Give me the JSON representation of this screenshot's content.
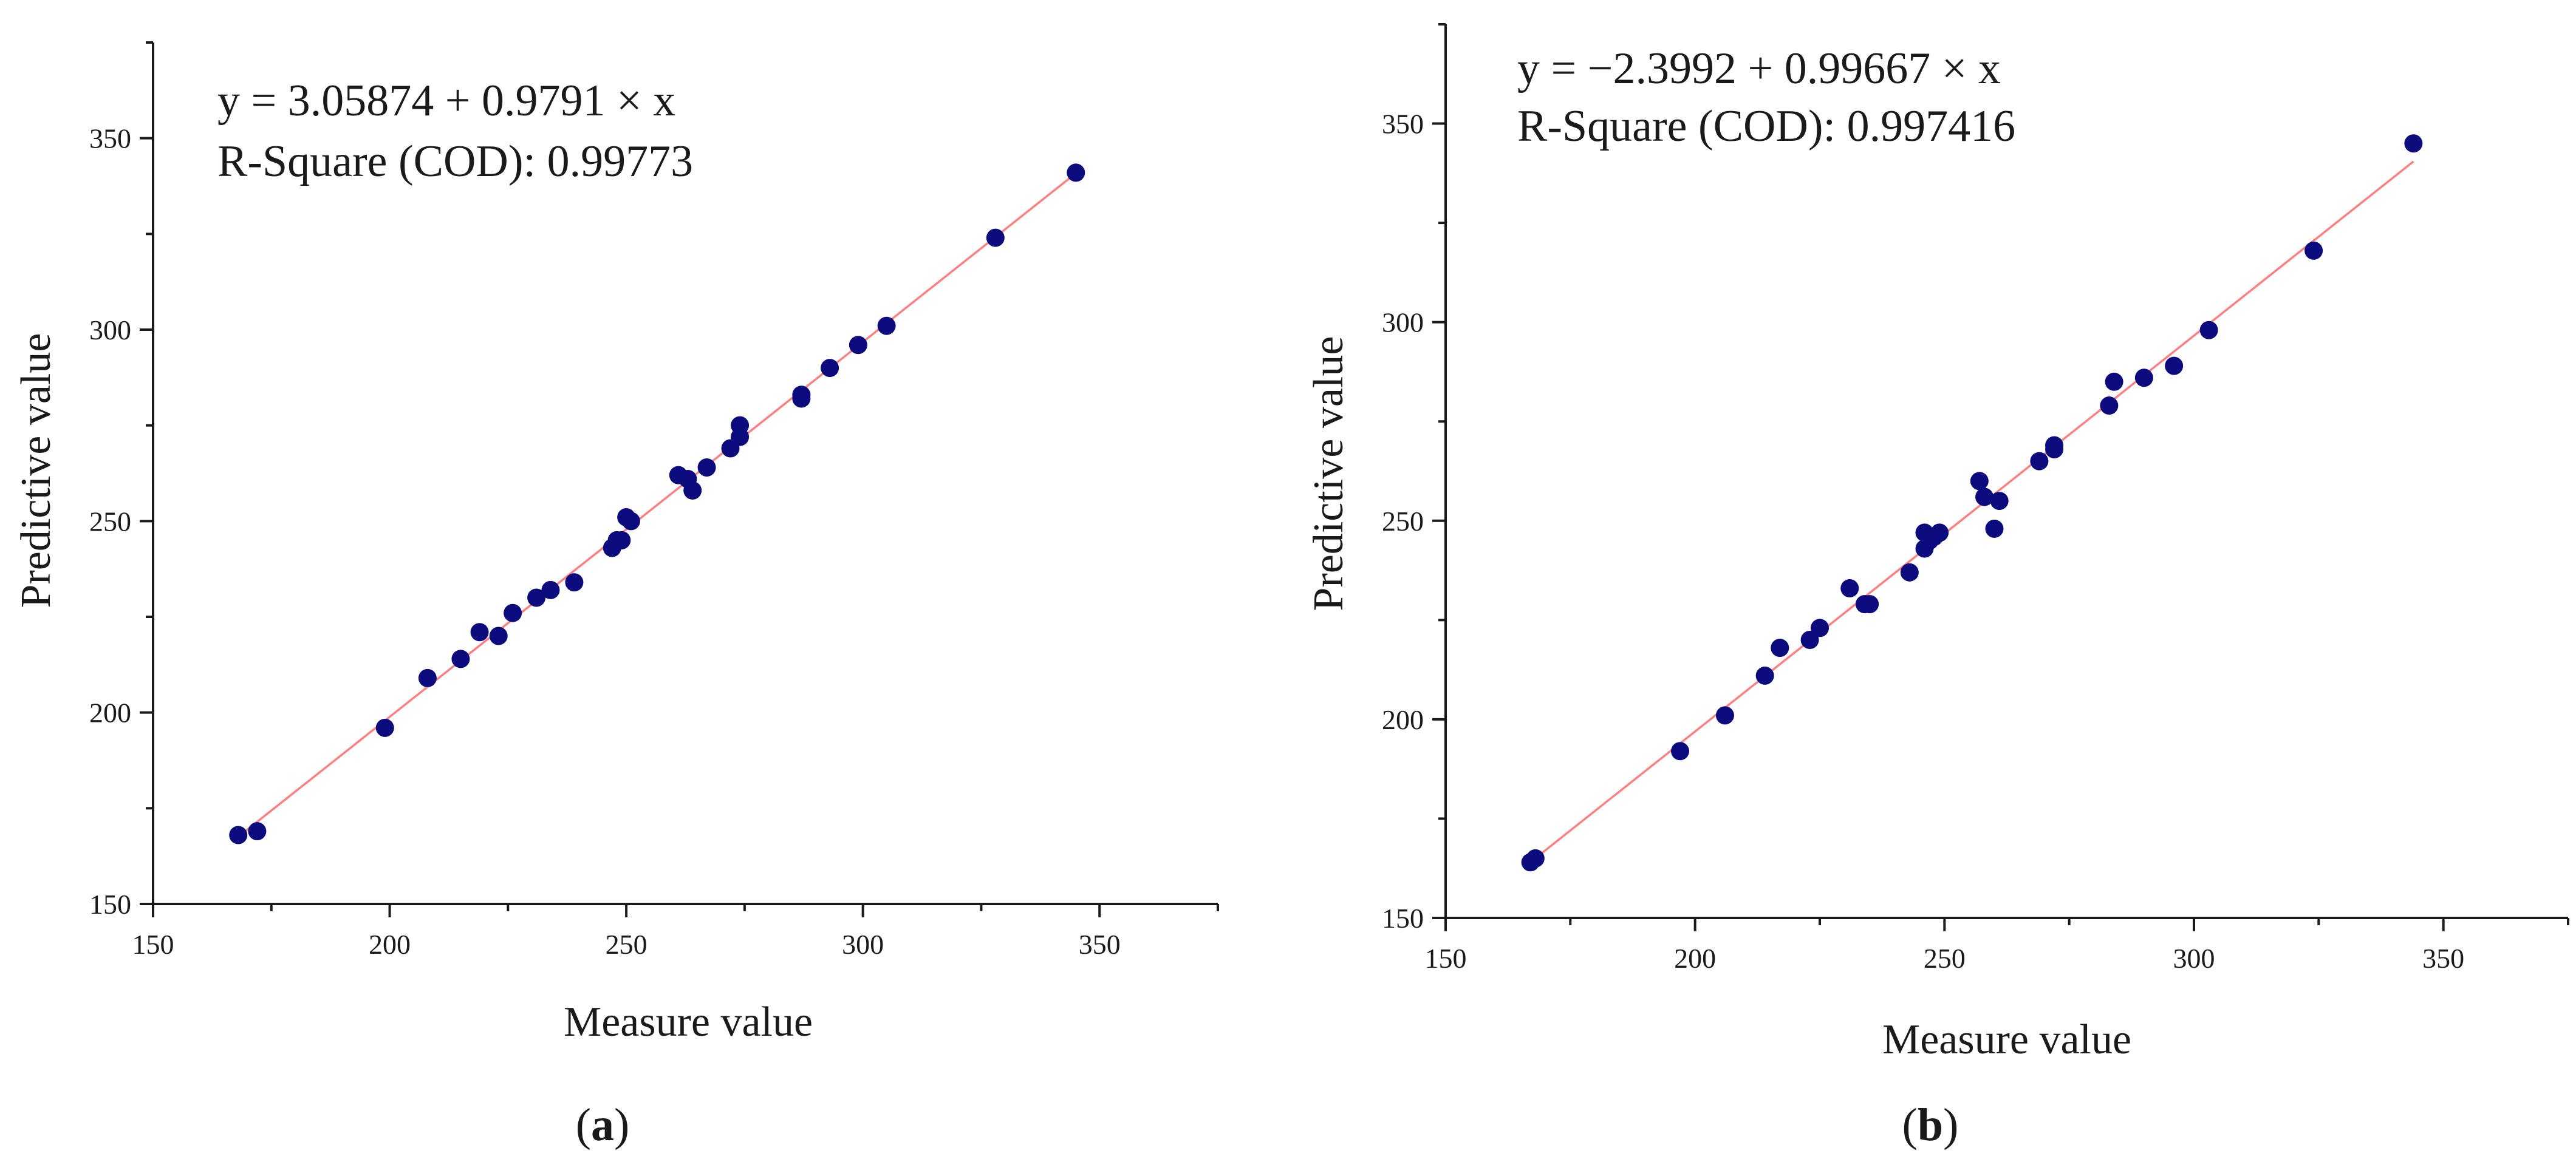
{
  "chart_data": [
    {
      "type": "scatter",
      "panel_label": "(a)",
      "panel_letter": "a",
      "equation": "y = 3.05874 + 0.9791 × x",
      "r_square": "R-Square (COD): 0.99773",
      "fit": {
        "intercept": 3.05874,
        "slope": 0.9791
      },
      "xlabel": "Measure value",
      "ylabel": "Predictive value",
      "xlim": [
        150,
        375
      ],
      "ylim": [
        150,
        375
      ],
      "xticks": [
        150,
        200,
        250,
        300,
        350
      ],
      "yticks": [
        150,
        200,
        250,
        300,
        350
      ],
      "xtick_labels": [
        "150",
        "200",
        "250",
        "300",
        "350"
      ],
      "ytick_labels": [
        "150",
        "200",
        "250",
        "300",
        "350"
      ],
      "fit_range": [
        169,
        345
      ],
      "points": [
        [
          168,
          168
        ],
        [
          172,
          169
        ],
        [
          199,
          196
        ],
        [
          208,
          209
        ],
        [
          215,
          214
        ],
        [
          219,
          221
        ],
        [
          223,
          220
        ],
        [
          226,
          226
        ],
        [
          231,
          230
        ],
        [
          234,
          232
        ],
        [
          239,
          234
        ],
        [
          247,
          243
        ],
        [
          248,
          245
        ],
        [
          249,
          245
        ],
        [
          250,
          251
        ],
        [
          251,
          250
        ],
        [
          261,
          262
        ],
        [
          263,
          261
        ],
        [
          264,
          258
        ],
        [
          267,
          264
        ],
        [
          272,
          269
        ],
        [
          274,
          272
        ],
        [
          274,
          275
        ],
        [
          287,
          282
        ],
        [
          287,
          283
        ],
        [
          293,
          290
        ],
        [
          299,
          296
        ],
        [
          305,
          301
        ],
        [
          328,
          324
        ],
        [
          345,
          341
        ]
      ]
    },
    {
      "type": "scatter",
      "panel_label": "(b)",
      "panel_letter": "b",
      "equation": "y = −2.3992 + 0.99667 × x",
      "r_square": "R-Square (COD): 0.997416",
      "fit": {
        "intercept": -2.3992,
        "slope": 0.99667
      },
      "xlabel": "Measure value",
      "ylabel": "Predictive value",
      "xlim": [
        150,
        375
      ],
      "ylim": [
        150,
        375
      ],
      "xticks": [
        150,
        200,
        250,
        300,
        350
      ],
      "yticks": [
        150,
        200,
        250,
        300,
        350
      ],
      "xtick_labels": [
        "150",
        "200",
        "250",
        "300",
        "350"
      ],
      "ytick_labels": [
        "150",
        "200",
        "250",
        "300",
        "350"
      ],
      "fit_range": [
        167,
        344
      ],
      "points": [
        [
          167,
          164
        ],
        [
          168,
          165
        ],
        [
          197,
          192
        ],
        [
          206,
          201
        ],
        [
          214,
          211
        ],
        [
          217,
          218
        ],
        [
          223,
          220
        ],
        [
          225,
          223
        ],
        [
          231,
          233
        ],
        [
          234,
          229
        ],
        [
          235,
          229
        ],
        [
          243,
          237
        ],
        [
          246,
          247
        ],
        [
          246,
          243
        ],
        [
          247,
          245
        ],
        [
          248,
          246
        ],
        [
          249,
          247
        ],
        [
          257,
          260
        ],
        [
          258,
          256
        ],
        [
          260,
          248
        ],
        [
          261,
          255
        ],
        [
          269,
          265
        ],
        [
          272,
          268
        ],
        [
          272,
          269
        ],
        [
          283,
          279
        ],
        [
          284,
          285
        ],
        [
          290,
          286
        ],
        [
          296,
          289
        ],
        [
          303,
          298
        ],
        [
          324,
          318
        ],
        [
          344,
          345
        ]
      ]
    }
  ]
}
